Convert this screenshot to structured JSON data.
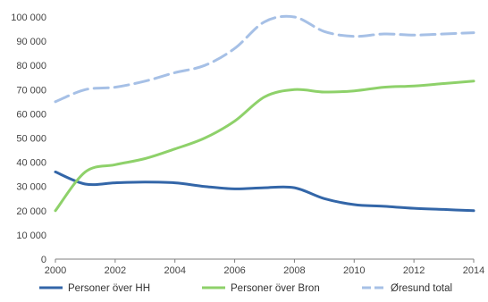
{
  "chart_data": {
    "type": "line",
    "x": [
      2000,
      2001,
      2002,
      2003,
      2004,
      2005,
      2006,
      2007,
      2008,
      2009,
      2010,
      2011,
      2012,
      2013,
      2014
    ],
    "series": [
      {
        "name": "Personer över HH",
        "color": "#3366a8",
        "style": "solid",
        "values": [
          36000,
          31000,
          31500,
          31800,
          31500,
          30000,
          29000,
          29500,
          29500,
          25000,
          22500,
          21800,
          21000,
          20500,
          20000
        ]
      },
      {
        "name": "Personer över Bron",
        "color": "#8ed16a",
        "style": "solid",
        "values": [
          20000,
          36000,
          39000,
          41500,
          45500,
          50000,
          57000,
          67000,
          70000,
          69000,
          69500,
          71000,
          71500,
          72500,
          73500
        ]
      },
      {
        "name": "Øresund total",
        "color": "#a6c0e6",
        "style": "dashed",
        "values": [
          65000,
          70000,
          71000,
          73500,
          77000,
          80000,
          87000,
          98000,
          100000,
          94000,
          92000,
          93000,
          92500,
          93000,
          93500
        ]
      }
    ],
    "xticks": [
      "2000",
      "2002",
      "2004",
      "2006",
      "2008",
      "2010",
      "2012",
      "2014"
    ],
    "xtick_values": [
      2000,
      2002,
      2004,
      2006,
      2008,
      2010,
      2012,
      2014
    ],
    "yticks": [
      "0",
      "10 000",
      "20 000",
      "30 000",
      "40 000",
      "50 000",
      "60 000",
      "70 000",
      "80 000",
      "90 000",
      "100 000"
    ],
    "ytick_values": [
      0,
      10000,
      20000,
      30000,
      40000,
      50000,
      60000,
      70000,
      80000,
      90000,
      100000
    ],
    "xlim": [
      2000,
      2014
    ],
    "ylim": [
      0,
      100000
    ],
    "grid": false,
    "legend_position": "bottom",
    "title": "",
    "xlabel": "",
    "ylabel": ""
  }
}
